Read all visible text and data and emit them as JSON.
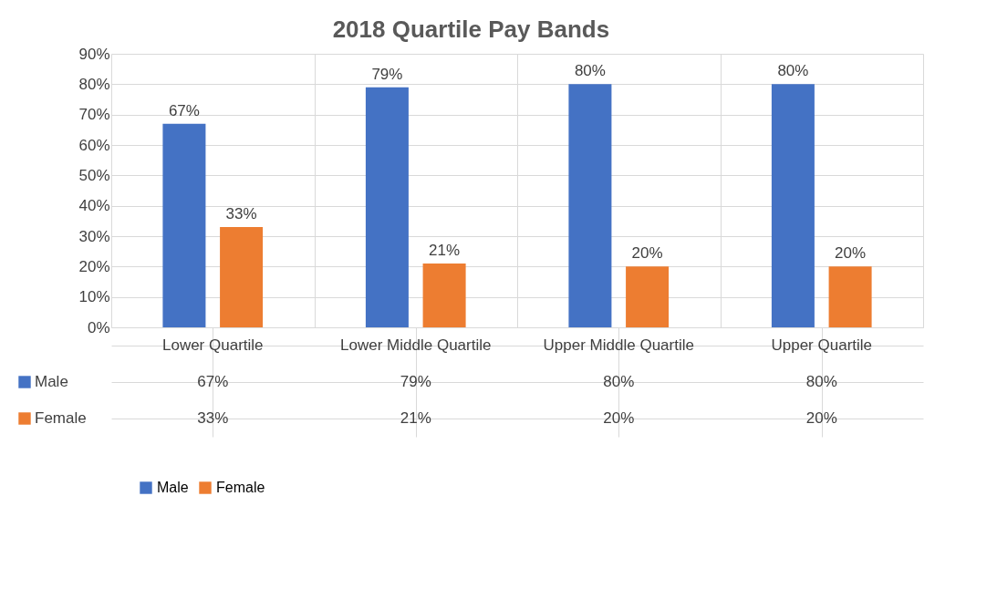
{
  "chart_data": {
    "type": "bar",
    "title": "2018 Quartile Pay Bands",
    "categories": [
      "Lower Quartile",
      "Lower Middle Quartile",
      "Upper Middle Quartile",
      "Upper Quartile"
    ],
    "series": [
      {
        "name": "Male",
        "color": "#4472c4",
        "values": [
          67,
          79,
          80,
          80
        ],
        "value_labels": [
          "67%",
          "79%",
          "80%",
          "80%"
        ]
      },
      {
        "name": "Female",
        "color": "#ed7d31",
        "values": [
          33,
          21,
          20,
          20
        ],
        "value_labels": [
          "33%",
          "21%",
          "20%",
          "20%"
        ]
      }
    ],
    "ylim": [
      0,
      90
    ],
    "yticks": [
      {
        "value": 0,
        "label": "0%"
      },
      {
        "value": 10,
        "label": "10%"
      },
      {
        "value": 20,
        "label": "20%"
      },
      {
        "value": 30,
        "label": "30%"
      },
      {
        "value": 40,
        "label": "40%"
      },
      {
        "value": 50,
        "label": "50%"
      },
      {
        "value": 60,
        "label": "60%"
      },
      {
        "value": 70,
        "label": "70%"
      },
      {
        "value": 80,
        "label": "80%"
      },
      {
        "value": 90,
        "label": "90%"
      }
    ],
    "grid": "y",
    "legend": "bottom"
  }
}
